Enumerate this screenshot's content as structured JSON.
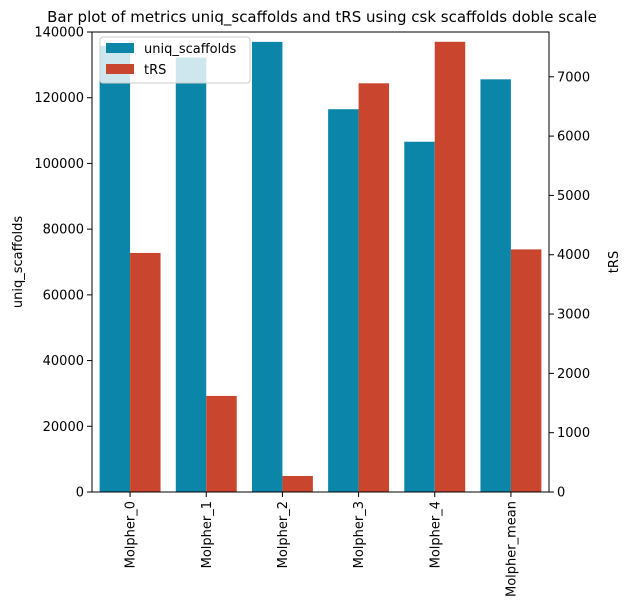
{
  "chart_data": {
    "type": "bar",
    "title": "Bar plot of metrics uniq_scaffolds and tRS using csk scaffolds doble scale",
    "categories": [
      "Molpher_0",
      "Molpher_1",
      "Molpher_2",
      "Molpher_3",
      "Molpher_4",
      "Molpher_mean"
    ],
    "series": [
      {
        "name": "uniq_scaffolds",
        "axis": "left",
        "color": "#0b86a8",
        "values": [
          135700,
          132200,
          137000,
          116500,
          106600,
          125600
        ]
      },
      {
        "name": "tRS",
        "axis": "right",
        "color": "#c9452e",
        "values": [
          4030,
          1620,
          270,
          6890,
          7590,
          4090
        ]
      }
    ],
    "left_axis": {
      "label": "uniq_scaffolds",
      "lim": [
        0,
        140000
      ],
      "ticks": [
        0,
        20000,
        40000,
        60000,
        80000,
        100000,
        120000,
        140000
      ]
    },
    "right_axis": {
      "label": "tRS",
      "lim": [
        0,
        7755
      ],
      "ticks": [
        0,
        1000,
        2000,
        3000,
        4000,
        5000,
        6000,
        7000
      ]
    },
    "legend_position": "top-left",
    "grid": false
  }
}
